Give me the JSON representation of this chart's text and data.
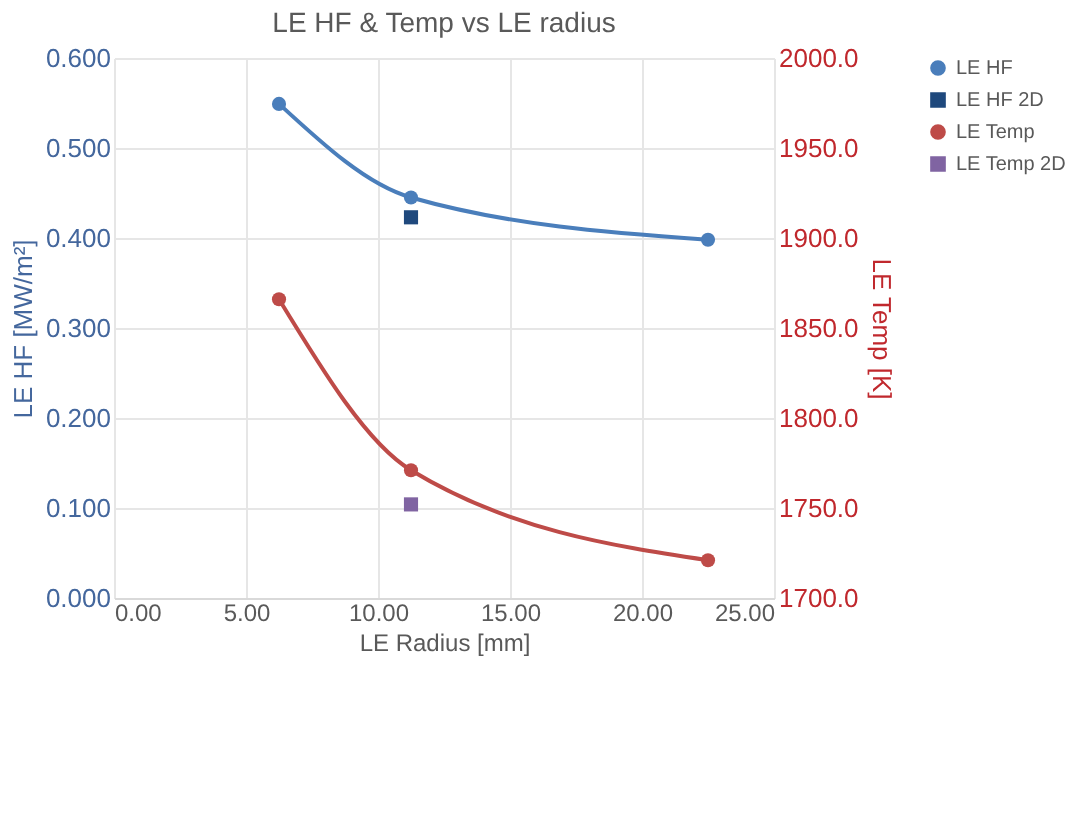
{
  "chart_data": {
    "type": "line",
    "title": "LE HF & Temp vs LE radius",
    "xlabel": "LE Radius [mm]",
    "ylabel": "LE HF [MW/m²]",
    "y2label": "LE Temp [K]",
    "xlim": [
      0,
      25
    ],
    "xticks": [
      {
        "value": 0,
        "label": "0.00"
      },
      {
        "value": 5,
        "label": "5.00"
      },
      {
        "value": 10,
        "label": "10.00"
      },
      {
        "value": 15,
        "label": "15.00"
      },
      {
        "value": 20,
        "label": "20.00"
      },
      {
        "value": 25,
        "label": "25.00"
      }
    ],
    "ylim": [
      0,
      0.6
    ],
    "yticks": [
      {
        "value": 0,
        "label": "0.000"
      },
      {
        "value": 0.1,
        "label": "0.100"
      },
      {
        "value": 0.2,
        "label": "0.200"
      },
      {
        "value": 0.3,
        "label": "0.300"
      },
      {
        "value": 0.4,
        "label": "0.400"
      },
      {
        "value": 0.5,
        "label": "0.500"
      },
      {
        "value": 0.6,
        "label": "0.600"
      }
    ],
    "y2lim": [
      1700,
      2000
    ],
    "y2ticks": [
      {
        "value": 1700,
        "label": "1700.0"
      },
      {
        "value": 1750,
        "label": "1750.0"
      },
      {
        "value": 1800,
        "label": "1800.0"
      },
      {
        "value": 1850,
        "label": "1850.0"
      },
      {
        "value": 1900,
        "label": "1900.0"
      },
      {
        "value": 1950,
        "label": "1950.0"
      },
      {
        "value": 2000,
        "label": "2000.0"
      }
    ],
    "grid": true,
    "legend": "top right",
    "series": [
      {
        "name": "LE HF",
        "marker": "circle",
        "color": "#4a7ebb",
        "x": [
          6.25,
          11.25,
          22.5
        ],
        "values": [
          0.549,
          0.445,
          0.398
        ]
      },
      {
        "name": "LE HF 2D",
        "marker": "square",
        "color": "#1f497d",
        "x": [
          11.25
        ],
        "values": [
          0.423
        ]
      },
      {
        "name": "LE Temp",
        "marker": "circle",
        "color": "#be4b48",
        "axis": "y2",
        "x": [
          6.25,
          11.25,
          22.5
        ],
        "values": [
          1866,
          1771,
          1721
        ]
      },
      {
        "name": "LE Temp 2D",
        "marker": "square",
        "color": "#8064a2",
        "axis": "y2",
        "x": [
          11.25
        ],
        "values": [
          1752
        ]
      }
    ]
  }
}
